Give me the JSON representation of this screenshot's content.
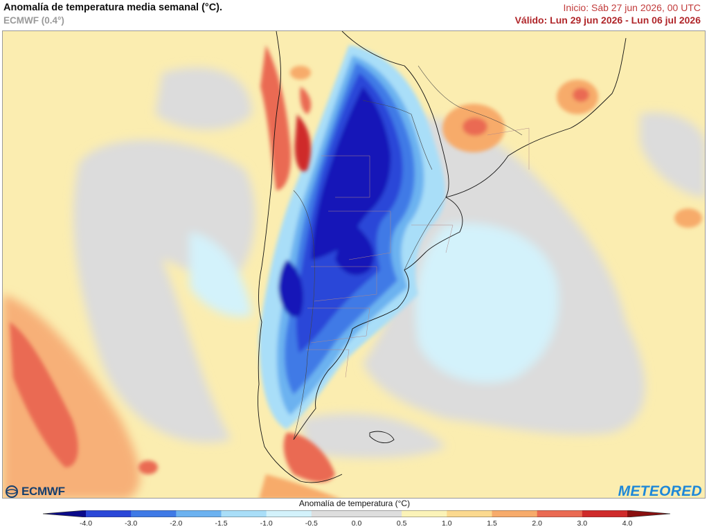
{
  "header": {
    "title": "Anomalía de temperatura media semanal (°C).",
    "model": "ECMWF (0.4°)",
    "init": "Inicio: Sáb 27 jun 2026, 00 UTC",
    "valid": "Válido: Lun 29 jun 2026 - Lun 06 jul 2026"
  },
  "logos": {
    "left": "ECMWF",
    "right": "METEORED"
  },
  "legend": {
    "title": "Anomalía de temperatura (°C)",
    "ticks": [
      "-4.0",
      "-3.0",
      "-2.0",
      "-1.5",
      "-1.0",
      "-0.5",
      "0.0",
      "0.5",
      "1.0",
      "1.5",
      "2.0",
      "3.0",
      "4.0"
    ],
    "colors": [
      "#1616b8",
      "#2a47d8",
      "#3f7ae6",
      "#6cb2f0",
      "#a9def8",
      "#d3f2fb",
      "#dedede",
      "#dedede",
      "#fbf3b8",
      "#fbd98f",
      "#f7ab6b",
      "#ea6a52",
      "#cf2a2a",
      "#9c1414"
    ],
    "low_color": "#0a0a8a",
    "high_color": "#8a0f0f"
  }
}
